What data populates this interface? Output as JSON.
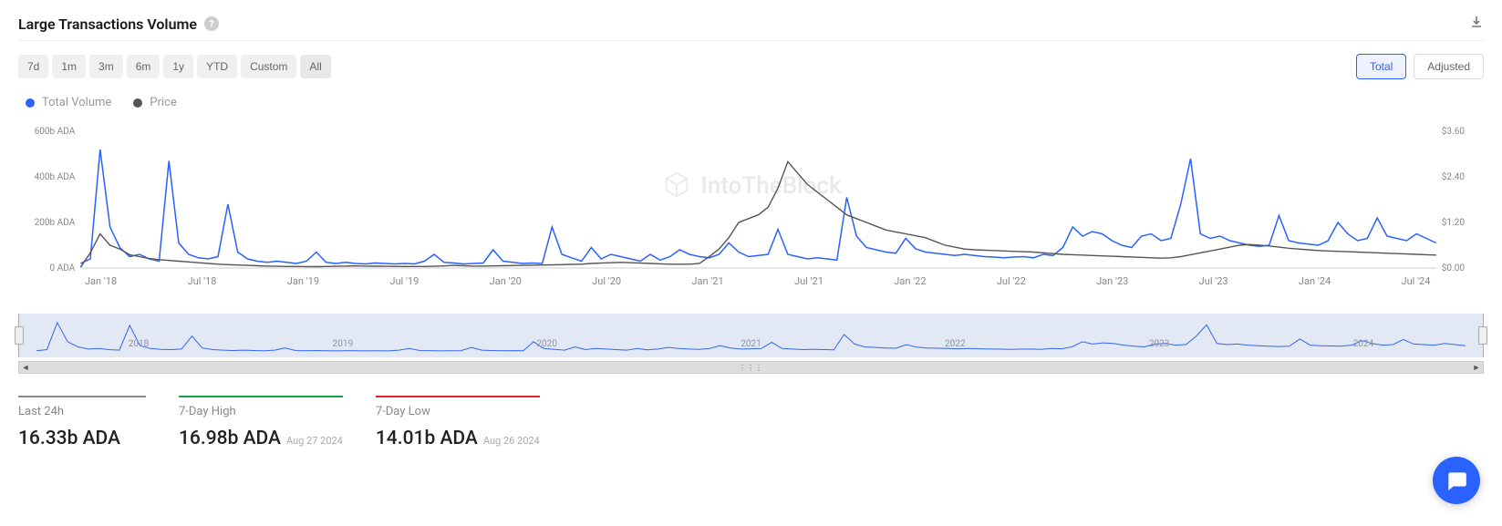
{
  "header": {
    "title": "Large Transactions Volume"
  },
  "range_buttons": [
    "7d",
    "1m",
    "3m",
    "6m",
    "1y",
    "YTD",
    "Custom",
    "All"
  ],
  "active_range_index": 7,
  "mode_buttons": [
    "Total",
    "Adjusted"
  ],
  "active_mode_index": 0,
  "legend": [
    {
      "label": "Total Volume",
      "color": "#2962ff"
    },
    {
      "label": "Price",
      "color": "#555555"
    }
  ],
  "watermark_text": "IntoTheBlock",
  "chart": {
    "type": "line-dual-axis",
    "background_color": "#ffffff",
    "gridline_color": "#eeeeee",
    "left_axis": {
      "ticks": [
        0,
        200,
        400,
        600
      ],
      "labels": [
        "0 ADA",
        "200b ADA",
        "400b ADA",
        "600b ADA"
      ],
      "max": 600,
      "color": "#888888"
    },
    "right_axis": {
      "ticks": [
        0.0,
        1.2,
        2.4,
        3.6
      ],
      "labels": [
        "$0.00",
        "$1.20",
        "$2.40",
        "$3.60"
      ],
      "max": 3.6,
      "color": "#888888"
    },
    "x_axis": {
      "labels": [
        "Jan '18",
        "Jul '18",
        "Jan '19",
        "Jul '19",
        "Jan '20",
        "Jul '20",
        "Jan '21",
        "Jul '21",
        "Jan '22",
        "Jul '22",
        "Jan '23",
        "Jul '23",
        "Jan '24",
        "Jul '24"
      ]
    },
    "series_volume": {
      "color": "#2962ff",
      "line_width": 1.5,
      "values": [
        20,
        40,
        520,
        180,
        90,
        50,
        60,
        40,
        30,
        470,
        110,
        60,
        45,
        40,
        50,
        280,
        70,
        40,
        30,
        25,
        30,
        25,
        20,
        30,
        70,
        25,
        20,
        25,
        20,
        18,
        22,
        20,
        18,
        20,
        18,
        30,
        60,
        25,
        22,
        18,
        20,
        22,
        80,
        30,
        25,
        20,
        22,
        20,
        180,
        60,
        45,
        30,
        90,
        40,
        60,
        50,
        40,
        30,
        60,
        35,
        50,
        80,
        60,
        50,
        45,
        60,
        110,
        70,
        50,
        55,
        60,
        170,
        60,
        50,
        40,
        45,
        40,
        35,
        310,
        140,
        90,
        80,
        70,
        65,
        130,
        85,
        70,
        65,
        60,
        55,
        60,
        55,
        50,
        48,
        45,
        48,
        50,
        45,
        60,
        55,
        90,
        180,
        140,
        160,
        150,
        120,
        100,
        90,
        140,
        150,
        120,
        130,
        280,
        480,
        150,
        130,
        140,
        120,
        110,
        100,
        95,
        100,
        230,
        120,
        110,
        105,
        100,
        120,
        200,
        150,
        120,
        130,
        220,
        140,
        130,
        120,
        150,
        130,
        110
      ]
    },
    "series_price": {
      "color": "#555555",
      "line_width": 1.4,
      "values": [
        0.02,
        0.4,
        0.9,
        0.6,
        0.5,
        0.35,
        0.3,
        0.25,
        0.22,
        0.2,
        0.18,
        0.16,
        0.14,
        0.12,
        0.1,
        0.09,
        0.08,
        0.07,
        0.06,
        0.05,
        0.045,
        0.04,
        0.04,
        0.038,
        0.037,
        0.04,
        0.045,
        0.05,
        0.055,
        0.05,
        0.048,
        0.045,
        0.043,
        0.042,
        0.04,
        0.04,
        0.045,
        0.055,
        0.07,
        0.06,
        0.05,
        0.05,
        0.055,
        0.06,
        0.065,
        0.07,
        0.075,
        0.08,
        0.085,
        0.09,
        0.095,
        0.1,
        0.12,
        0.13,
        0.14,
        0.15,
        0.14,
        0.13,
        0.12,
        0.11,
        0.1,
        0.1,
        0.1,
        0.12,
        0.3,
        0.5,
        0.8,
        1.2,
        1.3,
        1.4,
        1.6,
        2.1,
        2.8,
        2.5,
        2.2,
        2.0,
        1.8,
        1.6,
        1.4,
        1.3,
        1.2,
        1.1,
        1.0,
        0.95,
        0.9,
        0.85,
        0.8,
        0.7,
        0.6,
        0.55,
        0.5,
        0.48,
        0.47,
        0.46,
        0.45,
        0.44,
        0.43,
        0.42,
        0.4,
        0.38,
        0.36,
        0.35,
        0.34,
        0.33,
        0.32,
        0.31,
        0.3,
        0.29,
        0.28,
        0.27,
        0.26,
        0.27,
        0.3,
        0.35,
        0.4,
        0.45,
        0.5,
        0.55,
        0.6,
        0.62,
        0.6,
        0.58,
        0.55,
        0.52,
        0.5,
        0.48,
        0.46,
        0.45,
        0.44,
        0.43,
        0.42,
        0.41,
        0.4,
        0.39,
        0.38,
        0.37,
        0.36,
        0.35,
        0.34
      ]
    },
    "navigator": {
      "year_labels": [
        "2018",
        "2019",
        "2020",
        "2021",
        "2022",
        "2023",
        "2024"
      ],
      "color": "#2962ff",
      "selection_color": "rgba(100,130,200,0.18)"
    }
  },
  "stats": [
    {
      "label": "Last 24h",
      "value": "16.33b ADA",
      "date": "",
      "border_color": "#888888"
    },
    {
      "label": "7-Day High",
      "value": "16.98b ADA",
      "date": "Aug 27 2024",
      "border_color": "#16a34a"
    },
    {
      "label": "7-Day Low",
      "value": "14.01b ADA",
      "date": "Aug 26 2024",
      "border_color": "#dc2626"
    }
  ]
}
